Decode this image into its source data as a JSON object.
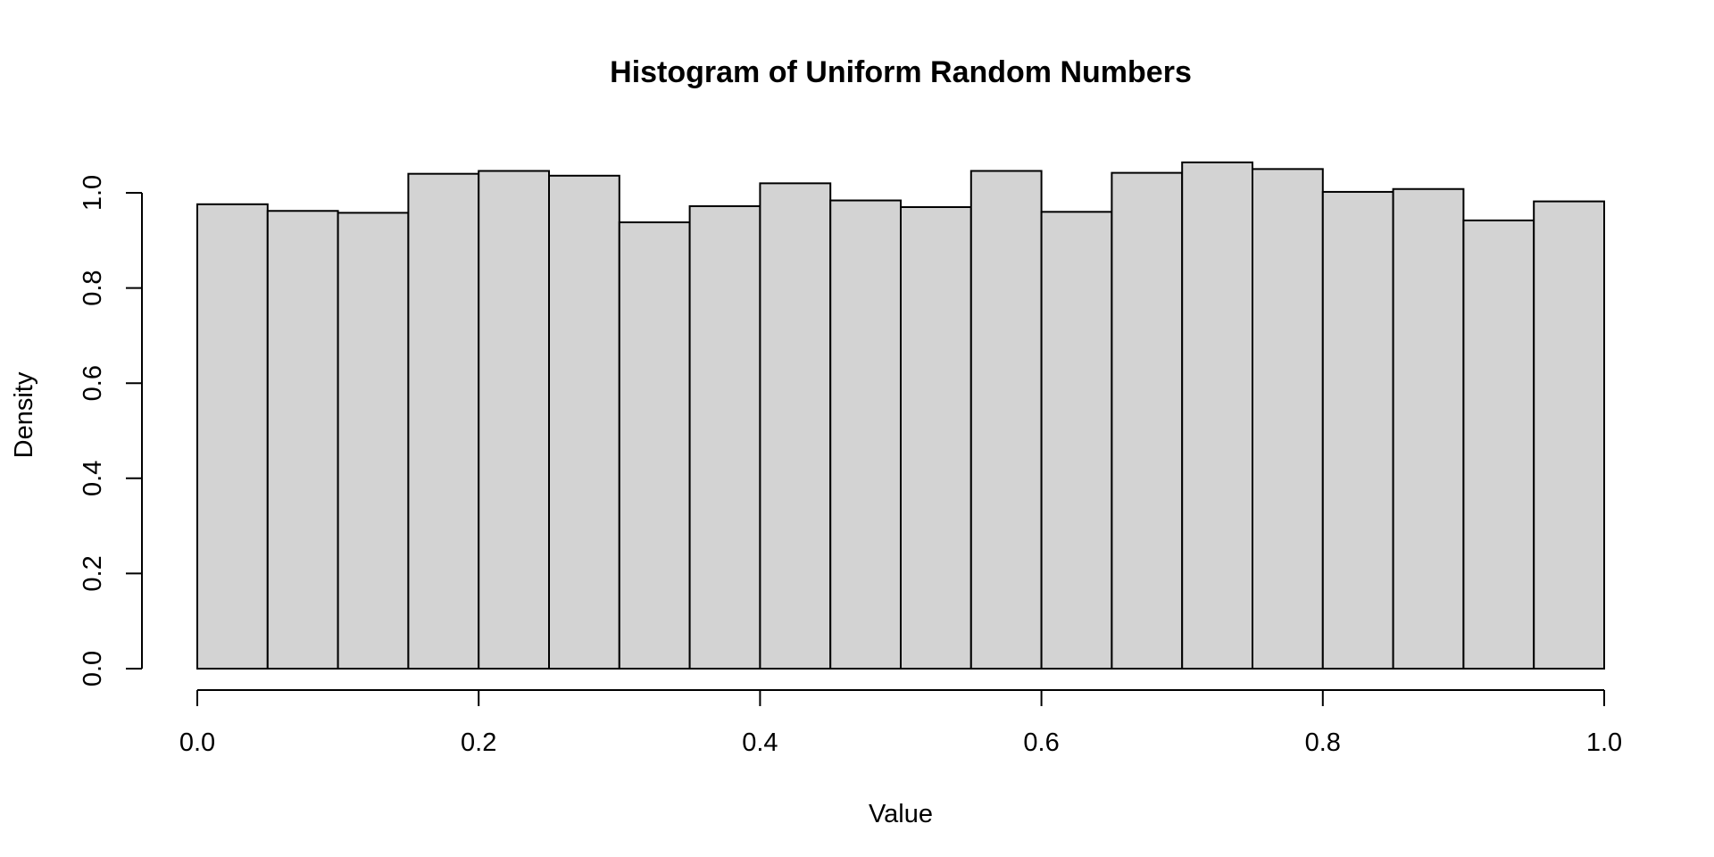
{
  "chart_data": {
    "type": "bar",
    "title": "Histogram of Uniform Random Numbers",
    "xlabel": "Value",
    "ylabel": "Density",
    "bin_edges": [
      0.0,
      0.05,
      0.1,
      0.15,
      0.2,
      0.25,
      0.3,
      0.35,
      0.4,
      0.45,
      0.5,
      0.55,
      0.6,
      0.65,
      0.7,
      0.75,
      0.8,
      0.85,
      0.9,
      0.95,
      1.0
    ],
    "values": [
      0.976,
      0.962,
      0.958,
      1.04,
      1.046,
      1.036,
      0.938,
      0.972,
      1.02,
      0.984,
      0.97,
      1.046,
      0.96,
      1.042,
      1.064,
      1.05,
      1.002,
      1.008,
      0.942,
      0.982
    ],
    "xlim": [
      0.0,
      1.0
    ],
    "ylim": [
      0.0,
      1.0
    ],
    "x_ticks": [
      0.0,
      0.2,
      0.4,
      0.6,
      0.8,
      1.0
    ],
    "x_tick_labels": [
      "0.0",
      "0.2",
      "0.4",
      "0.6",
      "0.8",
      "1.0"
    ],
    "y_ticks": [
      0.0,
      0.2,
      0.4,
      0.6,
      0.8,
      1.0
    ],
    "y_tick_labels": [
      "0.0",
      "0.2",
      "0.4",
      "0.6",
      "0.8",
      "1.0"
    ],
    "bar_fill": "#d3d3d3",
    "bar_stroke": "#000000",
    "grid": false,
    "legend": "none"
  }
}
